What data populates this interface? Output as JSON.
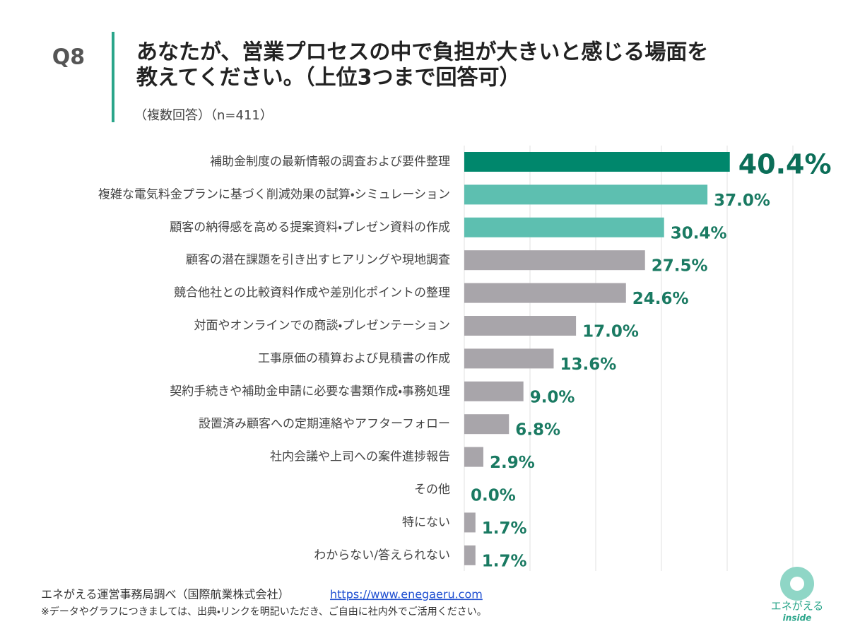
{
  "chart_data": {
    "type": "bar",
    "orientation": "horizontal",
    "question": "Q8",
    "title": [
      "あなたが、営業プロセスの中で負担が大きいと感じる場面を",
      "教えてください。（上位3つまで回答可）"
    ],
    "subtitle": "（複数回答）（n=411）",
    "categories": [
      "補助金制度の最新情報の調査および要件整理",
      "複雑な電気料金プランに基づく削減効果の試算・シミュレーション",
      "顧客の納得感を高める提案資料・プレゼン資料の作成",
      "顧客の潜在課題を引き出すヒアリングや現地調査",
      "競合他社との比較資料作成や差別化ポイントの整理",
      "対面やオンラインでの商談・プレゼンテーション",
      "工事原価の積算および見積書の作成",
      "契約手続きや補助金申請に必要な書類作成・事務処理",
      "設置済み顧客への定期連絡やアフターフォロー",
      "社内会議や上司への案件進捗報告",
      "その他",
      "特にない",
      "わからない/答えられない"
    ],
    "values": [
      40.4,
      37.0,
      30.4,
      27.5,
      24.6,
      17.0,
      13.6,
      9.0,
      6.8,
      2.9,
      0.0,
      1.7,
      1.7
    ],
    "value_labels": [
      "40.4%",
      "37.0%",
      "30.4%",
      "27.5%",
      "24.6%",
      "17.0%",
      "13.6%",
      "9.0%",
      "6.8%",
      "2.9%",
      "0.0%",
      "1.7%",
      "1.7%"
    ],
    "colors": [
      "#00876c",
      "#5dbfb0",
      "#5dbfb0",
      "#a8a5aa",
      "#a8a5aa",
      "#a8a5aa",
      "#a8a5aa",
      "#a8a5aa",
      "#a8a5aa",
      "#a8a5aa",
      "#a8a5aa",
      "#a8a5aa",
      "#a8a5aa"
    ],
    "xlim": [
      0,
      50
    ],
    "xticks": [
      0,
      10,
      20,
      30,
      40,
      50
    ],
    "grid": true
  },
  "footer": {
    "source": "エネがえる運営事務局調べ（国際航業株式会社）",
    "url": "https://www.enegaeru.com",
    "note": "※データやグラフにつきましては、出典・リンクを明記いただき、ご自由に社内外でご活用ください。"
  },
  "logo": {
    "name": "エネがえる",
    "tagline": "inside"
  }
}
